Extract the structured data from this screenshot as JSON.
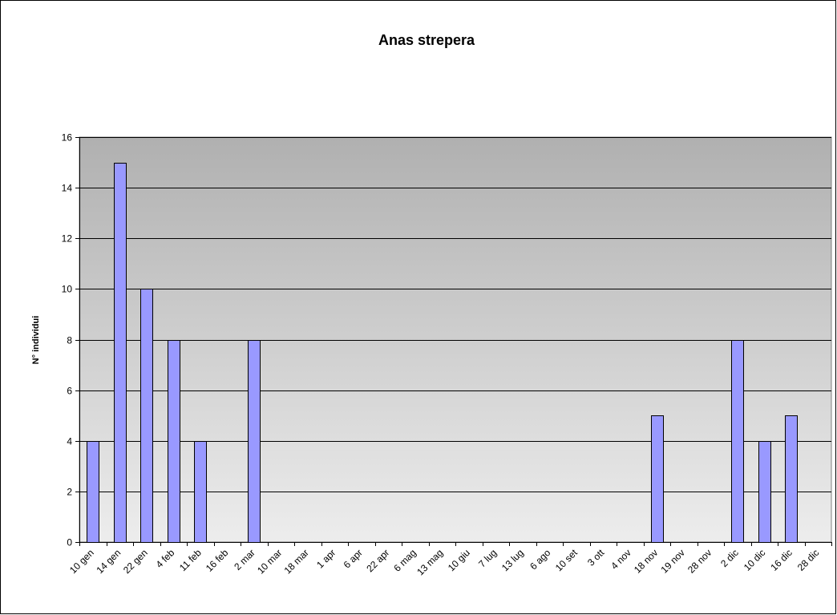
{
  "chart_data": {
    "type": "bar",
    "title": "Anas strepera",
    "xlabel": "",
    "ylabel": "N° individui",
    "ylim": [
      0,
      16
    ],
    "yticks": [
      0,
      2,
      4,
      6,
      8,
      10,
      12,
      14,
      16
    ],
    "grid": true,
    "legend": "none",
    "colors": {
      "bar_fill": "#9999FF",
      "bar_stroke": "#000000",
      "plot_bg_top": "#B0B0B0",
      "plot_bg_bottom": "#EDEDED",
      "gridline": "#000000"
    },
    "categories": [
      "10 gen",
      "14 gen",
      "22 gen",
      "4 feb",
      "11 feb",
      "16 feb",
      "2 mar",
      "10 mar",
      "18 mar",
      "1 apr",
      "6 apr",
      "22 apr",
      "6 mag",
      "13 mag",
      "10 giu",
      "7 lug",
      "13 lug",
      "6 ago",
      "10 set",
      "3 ott",
      "4 nov",
      "18 nov",
      "19 nov",
      "28 nov",
      "2 dic",
      "10 dic",
      "16 dic",
      "28 dic"
    ],
    "values": [
      4,
      15,
      10,
      8,
      4,
      0,
      8,
      0,
      0,
      0,
      0,
      0,
      0,
      0,
      0,
      0,
      0,
      0,
      0,
      0,
      0,
      5,
      0,
      0,
      8,
      4,
      5,
      0
    ]
  }
}
